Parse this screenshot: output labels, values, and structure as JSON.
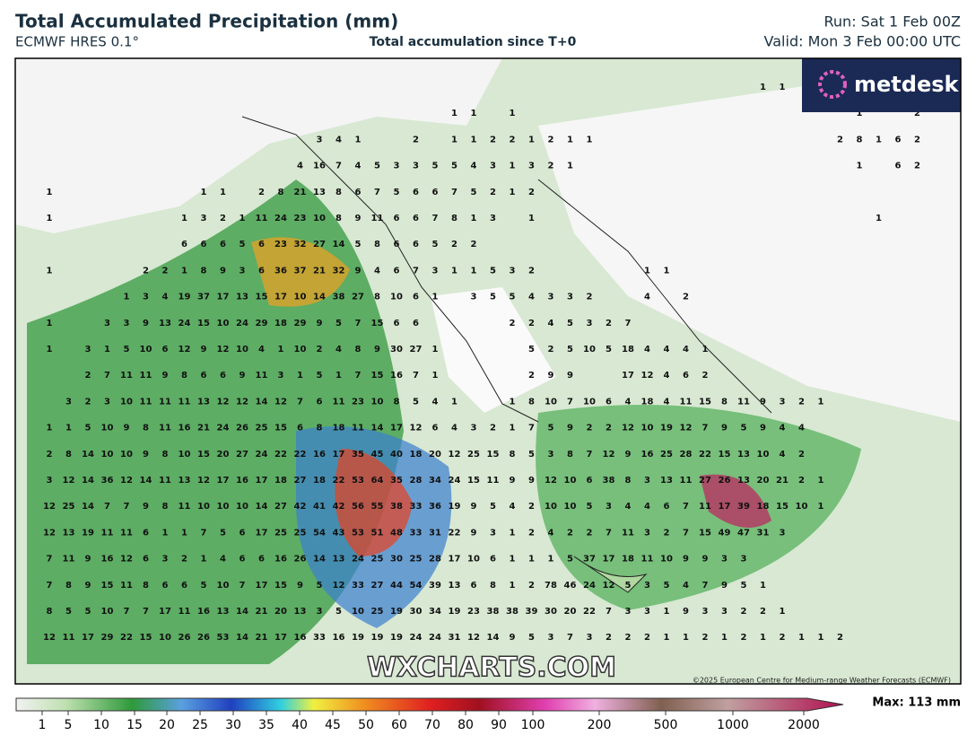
{
  "header": {
    "title": "Total Accumulated Precipitation (mm)",
    "model": "ECMWF HRES 0.1°",
    "subtitle": "Total accumulation since T+0",
    "run": "Run: Sat 1 Feb 00Z",
    "valid": "Valid: Mon 3 Feb 00:00 UTC"
  },
  "logo": "metdesk",
  "watermark": "WXCHARTS.COM",
  "copyright": "©2025 European Centre for Medium-range Weather Forecasts (ECMWF)",
  "legend": {
    "ticks": [
      1,
      5,
      10,
      15,
      20,
      25,
      30,
      35,
      40,
      45,
      50,
      60,
      70,
      80,
      90,
      100,
      200,
      500,
      1000,
      2000
    ],
    "max": "Max: 113 mm"
  },
  "grid": {
    "rows": [
      [
        null,
        null,
        null,
        null,
        null,
        null,
        null,
        null,
        null,
        null,
        null,
        null,
        null,
        null,
        null,
        null,
        null,
        null,
        null,
        null,
        null,
        null,
        null,
        null,
        null,
        null,
        null,
        null,
        null,
        null,
        null,
        null,
        null,
        null,
        null,
        null,
        null,
        1,
        1
      ],
      [
        null,
        null,
        null,
        null,
        null,
        null,
        null,
        null,
        null,
        null,
        null,
        null,
        null,
        null,
        null,
        null,
        null,
        null,
        null,
        null,
        null,
        1,
        1,
        null,
        1,
        null,
        null,
        null,
        null,
        null,
        null,
        null,
        null,
        null,
        null,
        null,
        null,
        null,
        null,
        null,
        null,
        null,
        1,
        null,
        null,
        2
      ],
      [
        null,
        null,
        null,
        null,
        null,
        null,
        null,
        null,
        null,
        null,
        null,
        null,
        null,
        null,
        3,
        4,
        1,
        null,
        null,
        2,
        null,
        1,
        1,
        2,
        2,
        1,
        2,
        1,
        1,
        null,
        null,
        null,
        null,
        null,
        null,
        null,
        null,
        null,
        null,
        null,
        null,
        2,
        8,
        1,
        6,
        2
      ],
      [
        null,
        null,
        null,
        null,
        null,
        null,
        null,
        null,
        null,
        null,
        null,
        null,
        null,
        4,
        16,
        7,
        4,
        5,
        3,
        3,
        5,
        5,
        4,
        3,
        1,
        3,
        2,
        1,
        null,
        null,
        null,
        null,
        null,
        null,
        null,
        null,
        null,
        null,
        null,
        null,
        null,
        null,
        1,
        null,
        6,
        2
      ],
      [
        1,
        null,
        null,
        null,
        null,
        null,
        null,
        null,
        1,
        1,
        null,
        2,
        8,
        21,
        13,
        8,
        6,
        7,
        5,
        6,
        6,
        7,
        5,
        2,
        1,
        2
      ],
      [
        1,
        null,
        null,
        null,
        null,
        null,
        null,
        1,
        3,
        2,
        1,
        11,
        24,
        23,
        10,
        8,
        9,
        11,
        6,
        6,
        7,
        8,
        1,
        3,
        null,
        1,
        null,
        null,
        null,
        null,
        null,
        null,
        null,
        null,
        null,
        null,
        null,
        null,
        null,
        null,
        null,
        null,
        null,
        1
      ],
      [
        null,
        null,
        null,
        null,
        null,
        null,
        null,
        6,
        6,
        6,
        5,
        6,
        23,
        32,
        27,
        14,
        5,
        8,
        6,
        6,
        5,
        2,
        2
      ],
      [
        1,
        null,
        null,
        null,
        null,
        2,
        2,
        1,
        8,
        9,
        3,
        6,
        36,
        37,
        21,
        32,
        9,
        4,
        6,
        7,
        3,
        1,
        1,
        5,
        3,
        2,
        null,
        null,
        null,
        null,
        null,
        1,
        1
      ],
      [
        null,
        null,
        null,
        null,
        1,
        3,
        4,
        19,
        37,
        17,
        13,
        15,
        17,
        10,
        14,
        38,
        27,
        8,
        10,
        6,
        1,
        null,
        3,
        5,
        5,
        4,
        3,
        3,
        2,
        null,
        null,
        4,
        null,
        2
      ],
      [
        1,
        null,
        null,
        3,
        3,
        9,
        13,
        24,
        15,
        10,
        24,
        29,
        18,
        29,
        9,
        5,
        7,
        15,
        6,
        6,
        null,
        null,
        null,
        null,
        2,
        2,
        4,
        5,
        3,
        2,
        7
      ],
      [
        1,
        null,
        3,
        1,
        5,
        10,
        6,
        12,
        9,
        12,
        10,
        4,
        1,
        10,
        2,
        4,
        8,
        9,
        30,
        27,
        1,
        null,
        null,
        null,
        null,
        5,
        2,
        5,
        10,
        5,
        18,
        4,
        4,
        4,
        1
      ],
      [
        null,
        null,
        2,
        7,
        11,
        11,
        9,
        8,
        6,
        6,
        9,
        11,
        3,
        1,
        5,
        1,
        7,
        15,
        16,
        7,
        1,
        null,
        null,
        null,
        null,
        2,
        9,
        9,
        null,
        null,
        17,
        12,
        4,
        6,
        2
      ],
      [
        null,
        3,
        2,
        3,
        10,
        11,
        11,
        11,
        13,
        12,
        12,
        14,
        12,
        7,
        6,
        11,
        23,
        10,
        8,
        5,
        4,
        1,
        null,
        null,
        1,
        8,
        10,
        7,
        10,
        6,
        4,
        18,
        4,
        11,
        15,
        8,
        11,
        9,
        3,
        2,
        1
      ],
      [
        1,
        1,
        5,
        10,
        9,
        8,
        11,
        16,
        21,
        24,
        26,
        25,
        15,
        6,
        8,
        18,
        11,
        14,
        17,
        12,
        6,
        4,
        3,
        2,
        1,
        7,
        5,
        9,
        2,
        2,
        12,
        10,
        19,
        12,
        7,
        9,
        5,
        9,
        4,
        4
      ],
      [
        2,
        8,
        14,
        10,
        10,
        9,
        8,
        10,
        15,
        20,
        27,
        24,
        22,
        22,
        16,
        17,
        35,
        45,
        40,
        18,
        20,
        12,
        25,
        15,
        8,
        5,
        3,
        8,
        7,
        12,
        9,
        16,
        25,
        28,
        22,
        15,
        13,
        10,
        4,
        2
      ],
      [
        3,
        12,
        14,
        36,
        12,
        14,
        11,
        13,
        12,
        17,
        16,
        17,
        18,
        27,
        18,
        22,
        53,
        64,
        35,
        28,
        34,
        24,
        15,
        11,
        9,
        9,
        12,
        10,
        6,
        38,
        8,
        3,
        13,
        11,
        27,
        26,
        13,
        20,
        21,
        2,
        1
      ],
      [
        12,
        25,
        14,
        7,
        7,
        9,
        8,
        11,
        10,
        10,
        10,
        14,
        27,
        42,
        41,
        42,
        56,
        55,
        38,
        33,
        36,
        19,
        9,
        5,
        4,
        2,
        10,
        10,
        5,
        3,
        4,
        4,
        6,
        7,
        11,
        17,
        39,
        18,
        15,
        10,
        1
      ],
      [
        12,
        13,
        19,
        11,
        11,
        6,
        1,
        1,
        7,
        5,
        6,
        17,
        25,
        25,
        54,
        43,
        53,
        51,
        48,
        33,
        31,
        22,
        9,
        3,
        1,
        2,
        4,
        2,
        2,
        7,
        11,
        3,
        2,
        7,
        15,
        49,
        47,
        31,
        3
      ],
      [
        7,
        11,
        9,
        16,
        12,
        6,
        3,
        2,
        1,
        4,
        6,
        6,
        16,
        26,
        14,
        13,
        24,
        25,
        30,
        25,
        28,
        17,
        10,
        6,
        1,
        1,
        1,
        5,
        37,
        17,
        18,
        11,
        10,
        9,
        9,
        3,
        3
      ],
      [
        7,
        8,
        9,
        15,
        11,
        8,
        6,
        6,
        5,
        10,
        7,
        17,
        15,
        9,
        5,
        12,
        33,
        27,
        44,
        54,
        39,
        13,
        6,
        8,
        1,
        2,
        78,
        46,
        24,
        12,
        5,
        3,
        5,
        4,
        7,
        9,
        5,
        1
      ],
      [
        8,
        5,
        5,
        10,
        7,
        7,
        17,
        11,
        16,
        13,
        14,
        21,
        20,
        13,
        3,
        5,
        10,
        25,
        19,
        30,
        34,
        19,
        23,
        38,
        38,
        39,
        30,
        20,
        22,
        7,
        3,
        3,
        1,
        9,
        3,
        3,
        2,
        2,
        1
      ],
      [
        12,
        11,
        17,
        29,
        22,
        15,
        10,
        26,
        26,
        53,
        14,
        21,
        17,
        16,
        33,
        16,
        19,
        19,
        19,
        24,
        24,
        31,
        12,
        14,
        9,
        5,
        3,
        7,
        3,
        2,
        2,
        2,
        1,
        1,
        2,
        1,
        2,
        1,
        2,
        1,
        1,
        2
      ]
    ]
  }
}
